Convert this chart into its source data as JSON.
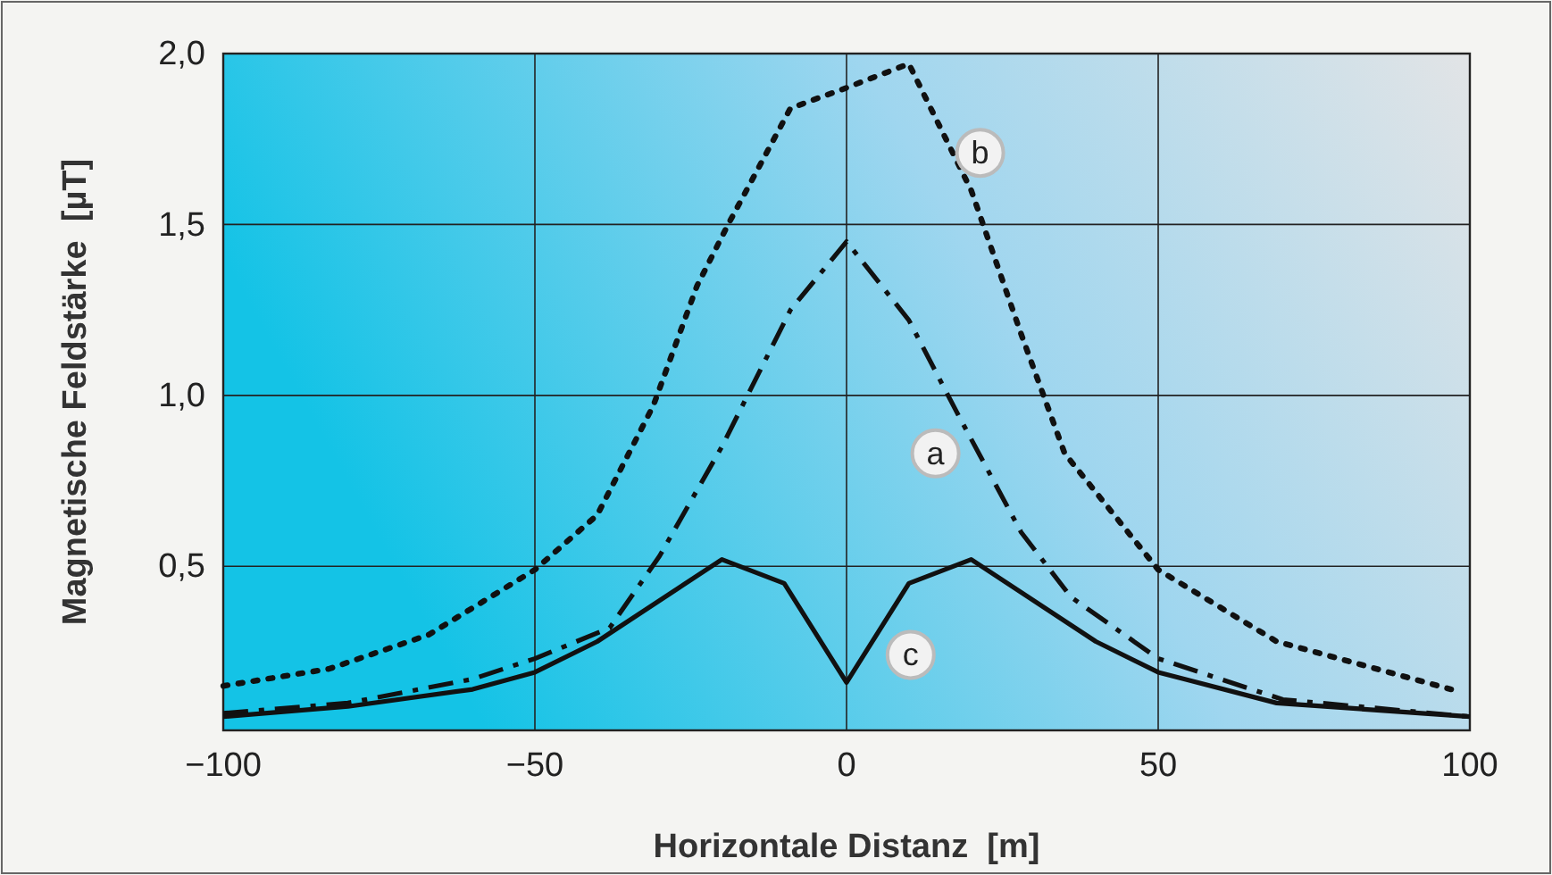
{
  "chart_data": {
    "type": "line",
    "xlabel": "Horizontale Distanz  [m]",
    "ylabel": "Magnetische Feldstärke  [µT]",
    "xlim": [
      -100,
      100
    ],
    "xticks": [
      {
        "value": -100,
        "label": "−100"
      },
      {
        "value": -50,
        "label": "−50"
      },
      0,
      50,
      100
    ],
    "ylim": [
      0.02,
      2.0
    ],
    "yticks": [
      {
        "value": 0.5,
        "label": "0,5"
      },
      {
        "value": 1.0,
        "label": "1,0"
      },
      {
        "value": 1.5,
        "label": "1,5"
      },
      {
        "value": 2.0,
        "label": "2,0"
      }
    ],
    "grid": true,
    "marker": "none",
    "series": [
      {
        "name": "a",
        "color": "#111111",
        "line_style": "dashed",
        "x": [
          -100,
          -80,
          -60,
          -50,
          -38,
          -30,
          -20,
          -9,
          0,
          10,
          18,
          28,
          36,
          50,
          70,
          100
        ],
        "values": [
          0.07,
          0.1,
          0.17,
          0.23,
          0.32,
          0.53,
          0.85,
          1.25,
          1.45,
          1.22,
          0.94,
          0.6,
          0.41,
          0.23,
          0.11,
          0.06
        ]
      },
      {
        "name": "b",
        "color": "#111111",
        "line_style": "dotted",
        "x": [
          -100,
          -83,
          -67,
          -50,
          -40,
          -31,
          -24,
          -19,
          -9,
          0,
          10,
          20,
          28,
          35,
          50,
          69,
          97
        ],
        "values": [
          0.15,
          0.2,
          0.3,
          0.49,
          0.65,
          0.97,
          1.32,
          1.5,
          1.84,
          1.9,
          1.97,
          1.6,
          1.18,
          0.83,
          0.49,
          0.28,
          0.14
        ]
      },
      {
        "name": "c",
        "color": "#111111",
        "line_style": "solid",
        "x": [
          -100,
          -80,
          -60,
          -50,
          -40,
          -20,
          -10,
          0,
          10,
          20,
          40,
          50,
          69,
          100
        ],
        "values": [
          0.06,
          0.09,
          0.14,
          0.19,
          0.28,
          0.52,
          0.45,
          0.16,
          0.45,
          0.52,
          0.28,
          0.19,
          0.1,
          0.06
        ]
      }
    ]
  }
}
